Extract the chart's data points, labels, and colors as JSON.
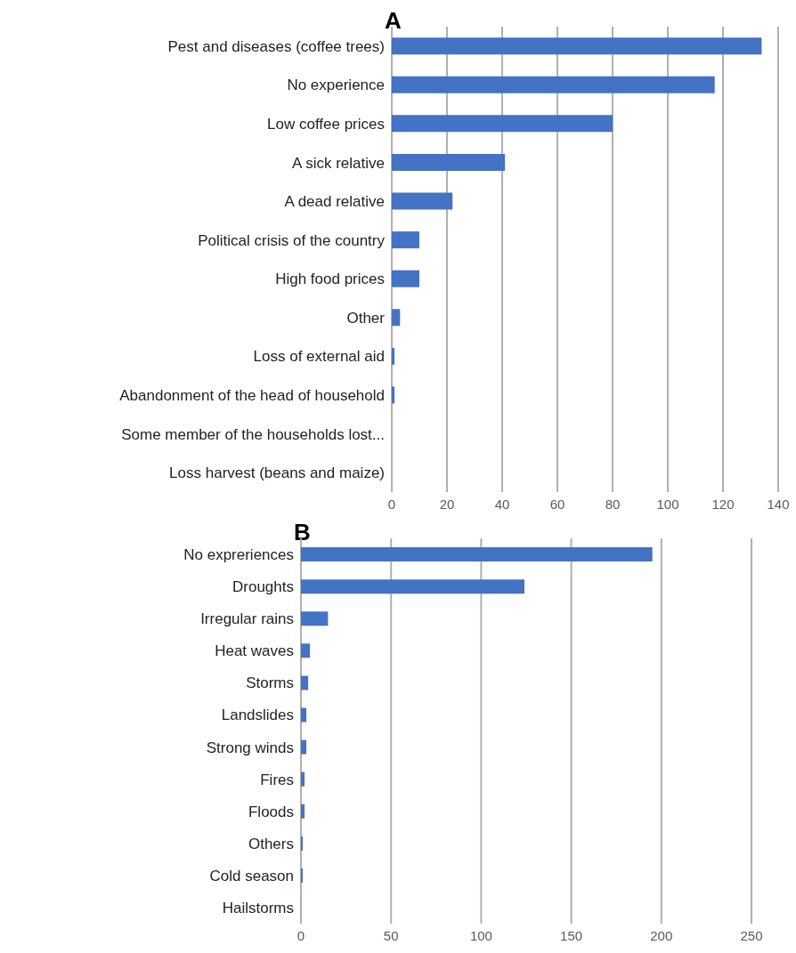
{
  "chart_data": [
    {
      "type": "bar",
      "title": "A",
      "orientation": "horizontal",
      "categories": [
        "Pest and diseases (coffee trees)",
        "No experience",
        "Low coffee prices",
        "A sick relative",
        "A dead relative",
        "Political crisis of the country",
        "High food prices",
        "Other",
        "Loss of external aid",
        "Abandonment of the head of household",
        "Some member of the households lost...",
        "Loss harvest (beans and maize)"
      ],
      "values": [
        134,
        117,
        80,
        41,
        22,
        10,
        10,
        3,
        1,
        1,
        0,
        0
      ],
      "color": "#4472c4",
      "xlim": [
        0,
        140
      ],
      "xticks": [
        0,
        20,
        40,
        60,
        80,
        100,
        120,
        140
      ],
      "grid": "x"
    },
    {
      "type": "bar",
      "title": "B",
      "orientation": "horizontal",
      "categories": [
        "No expreriences",
        "Droughts",
        "Irregular rains",
        "Heat waves",
        "Storms",
        "Landslides",
        "Strong winds",
        "Fires",
        "Floods",
        "Others",
        "Cold season",
        "Hailstorms"
      ],
      "values": [
        195,
        124,
        15,
        5,
        4,
        3,
        3,
        2,
        2,
        1,
        1,
        0
      ],
      "color": "#4472c4",
      "xlim": [
        0,
        250
      ],
      "xticks": [
        0,
        50,
        100,
        150,
        200,
        250
      ],
      "grid": "x"
    }
  ]
}
